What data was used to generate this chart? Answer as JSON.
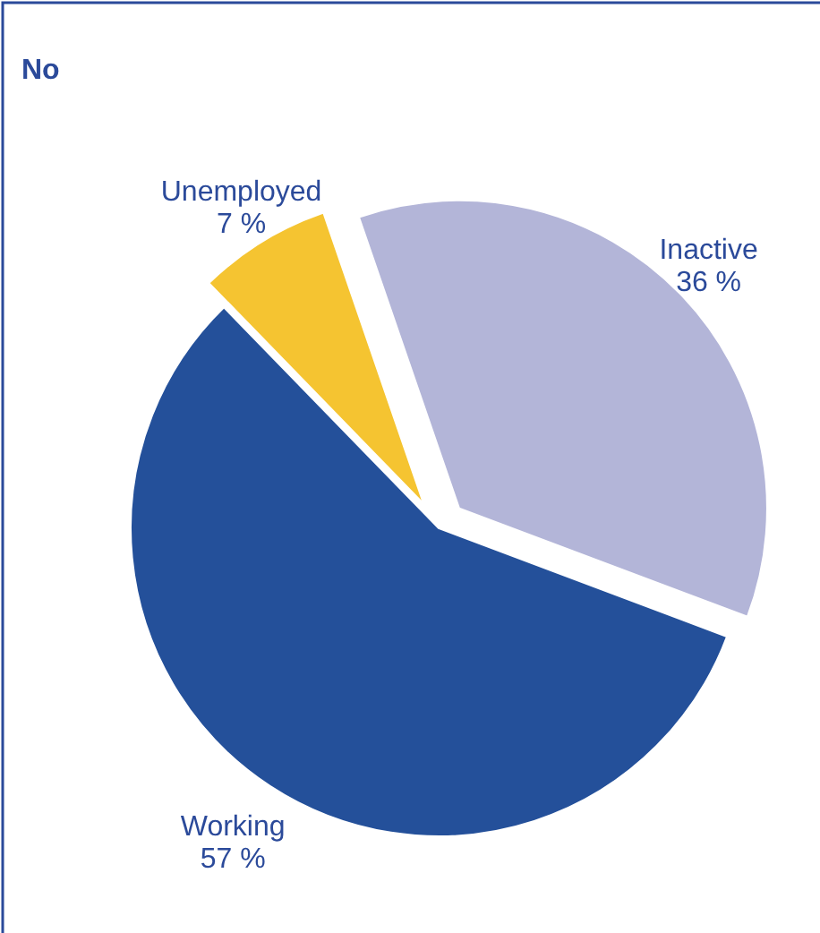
{
  "chart_data": {
    "type": "pie",
    "title": "No",
    "categories": [
      "Inactive",
      "Working",
      "Unemployed"
    ],
    "values": [
      36,
      57,
      7
    ],
    "value_labels": [
      "36 %",
      "57 %",
      "7 %"
    ],
    "colors": [
      "#b3b5d8",
      "#24509a",
      "#f5c431"
    ],
    "legend": false
  }
}
